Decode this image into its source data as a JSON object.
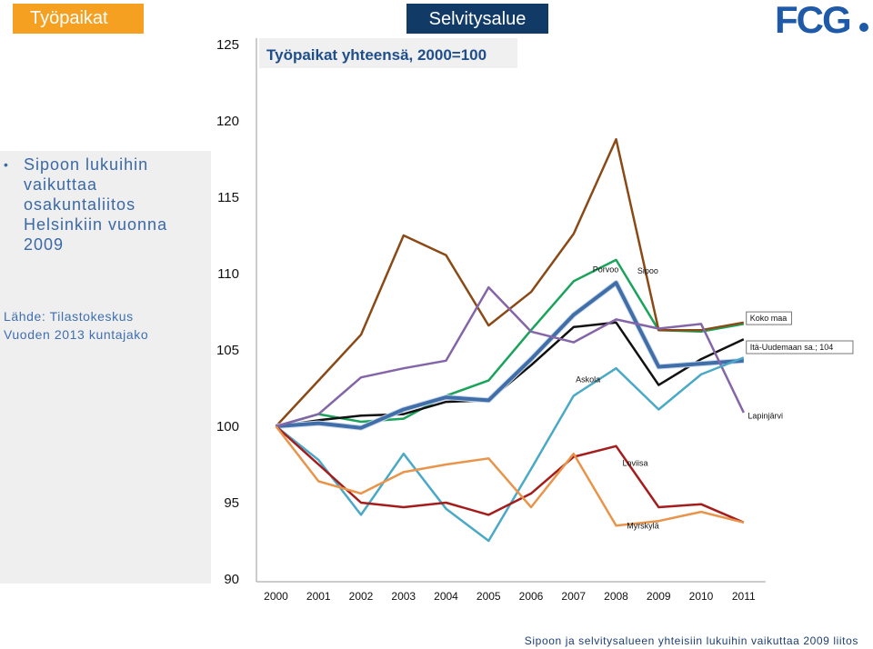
{
  "header": {
    "slide_title": "Työpaikat",
    "section_badge": "Selvitysalue",
    "logo_text": "FCG"
  },
  "sidebar": {
    "bullet": "Sipoon lukuihin vaikuttaa osakuntaliitos Helsinkiin vuonna 2009",
    "source_line1": "Lähde: Tilastokeskus",
    "source_line2": "Vuoden 2013 kuntajako"
  },
  "footer": "Sipoon ja selvitysalueen yhteisiin lukuihin vaikuttaa 2009 liitos",
  "colors": {
    "title_bg": "#f5a021",
    "badge_bg": "#123a66",
    "logo": "#1f5aa8",
    "panel_bg": "#efefef"
  },
  "chart_data": {
    "type": "line",
    "title": "Työpaikat yhteensä, 2000=100",
    "xlabel": "",
    "ylabel": "",
    "x": [
      2000,
      2001,
      2002,
      2003,
      2004,
      2005,
      2006,
      2007,
      2008,
      2009,
      2010,
      2011
    ],
    "ylim": [
      90,
      125
    ],
    "yticks": [
      90,
      95,
      100,
      105,
      110,
      115,
      120,
      125
    ],
    "grid": false,
    "series": [
      {
        "name": "Porvoo",
        "color": "#1aa35a",
        "width": 2.5,
        "values": [
          100,
          100.8,
          100.3,
          100.5,
          102,
          103,
          106.3,
          109.5,
          110.9,
          106.3,
          106.2,
          106.7
        ]
      },
      {
        "name": "Sipoo",
        "color": "#8a4a17",
        "width": 2.5,
        "values": [
          100,
          103,
          106,
          112.5,
          111.2,
          106.6,
          108.8,
          112.6,
          118.8,
          106.3,
          106.3,
          106.8
        ]
      },
      {
        "name": "Koko maa",
        "color": "#111111",
        "width": 2.5,
        "values": [
          100,
          100.4,
          100.7,
          100.8,
          101.6,
          101.7,
          104,
          106.5,
          106.8,
          102.7,
          104.4,
          105.7
        ]
      },
      {
        "name": "Itä-Uudemaan sa.; 104",
        "color": "#3f6ea8",
        "width": 4,
        "values": [
          100,
          100.2,
          99.9,
          101.1,
          101.9,
          101.7,
          104.4,
          107.3,
          109.4,
          103.9,
          104.1,
          104.3
        ]
      },
      {
        "name": "Lapinjärvi",
        "color": "#8465a8",
        "width": 2.5,
        "values": [
          100,
          100.8,
          103.2,
          103.8,
          104.3,
          109.1,
          106.2,
          105.5,
          107,
          106.4,
          106.7,
          100.9
        ]
      },
      {
        "name": "Askola",
        "color": "#4aa9c6",
        "width": 2.5,
        "values": [
          100,
          97.8,
          94.2,
          98.2,
          94.6,
          92.5,
          97.2,
          102,
          103.8,
          101.1,
          103.4,
          104.5
        ]
      },
      {
        "name": "Loviisa",
        "color": "#a51c1c",
        "width": 2.5,
        "values": [
          100,
          97.5,
          95,
          94.7,
          95,
          94.2,
          95.6,
          98,
          98.7,
          94.7,
          94.9,
          93.7
        ]
      },
      {
        "name": "Myrskylä",
        "color": "#e8944a",
        "width": 2.5,
        "values": [
          100,
          96.4,
          95.6,
          97,
          97.5,
          97.9,
          94.7,
          98.2,
          93.5,
          93.8,
          94.4,
          93.7
        ]
      }
    ],
    "labels": [
      {
        "text": "Porvoo",
        "x": 2007.45,
        "y": 110.1
      },
      {
        "text": "Sipoo",
        "x": 2008.5,
        "y": 110
      },
      {
        "text": "Askola",
        "x": 2007.05,
        "y": 102.9
      },
      {
        "text": "Loviisa",
        "x": 2008.15,
        "y": 97.4
      },
      {
        "text": "Myrskylä",
        "x": 2008.25,
        "y": 93.3
      },
      {
        "text": "Koko maa",
        "x": 2011.15,
        "y": 106.9,
        "boxed": true
      },
      {
        "text": "Itä-Uudemaan sa.; 104",
        "x": 2011.15,
        "y": 105,
        "boxed": true
      },
      {
        "text": "Lapinjärvi",
        "x": 2011.1,
        "y": 100.5
      }
    ]
  }
}
